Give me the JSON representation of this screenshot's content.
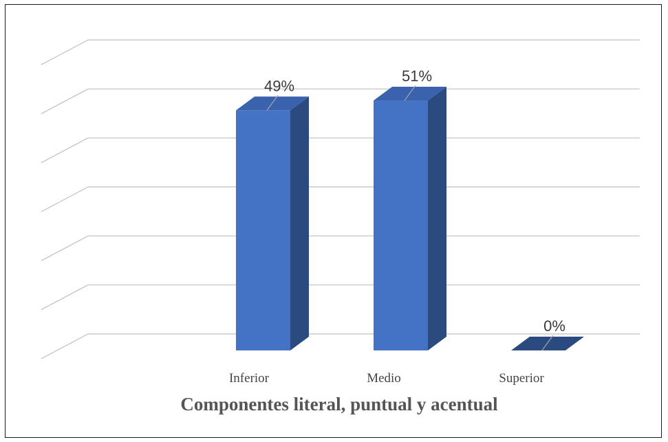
{
  "chart_data": {
    "type": "bar",
    "style": "3d-column",
    "title": "Componentes literal, puntual y acentual",
    "categories": [
      "Inferior",
      "Medio",
      "Superior"
    ],
    "values": [
      49,
      51,
      0
    ],
    "data_labels": [
      "49%",
      "51%",
      "0%"
    ],
    "ylim": [
      0,
      60
    ],
    "y_axis_labels_shown": false,
    "grid": true,
    "legend": "none",
    "colors": {
      "bar_front": "#4472c4",
      "bar_side": "#2b4a80",
      "bar_top": "#3a62ad",
      "gridline": "#bfbfbf",
      "title": "#555555",
      "leader_line": "#a6a6a6"
    }
  }
}
